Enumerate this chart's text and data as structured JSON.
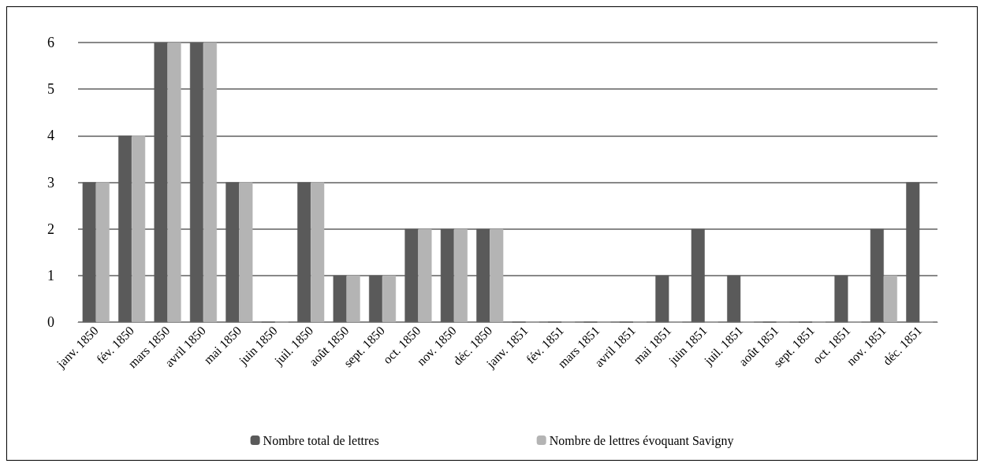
{
  "chart_data": {
    "type": "bar",
    "categories": [
      "janv. 1850",
      "fév. 1850",
      "mars 1850",
      "avril 1850",
      "mai 1850",
      "juin 1850",
      "juil. 1850",
      "août 1850",
      "sept. 1850",
      "oct. 1850",
      "nov. 1850",
      "déc. 1850",
      "janv. 1851",
      "fév. 1851",
      "mars 1851",
      "avril 1851",
      "mai 1851",
      "juin 1851",
      "juil. 1851",
      "août 1851",
      "sept. 1851",
      "oct. 1851",
      "nov. 1851",
      "déc. 1851"
    ],
    "series": [
      {
        "name": "Nombre total de lettres",
        "color": "#5a5a5a",
        "values": [
          3,
          4,
          6,
          6,
          3,
          0,
          3,
          1,
          1,
          2,
          2,
          2,
          0,
          0,
          0,
          0,
          1,
          2,
          1,
          0,
          0,
          1,
          2,
          3
        ]
      },
      {
        "name": "Nombre de lettres évoquant Savigny",
        "color": "#b4b4b4",
        "values": [
          3,
          4,
          6,
          6,
          3,
          0,
          3,
          1,
          1,
          2,
          2,
          2,
          0,
          0,
          0,
          0,
          0,
          0,
          0,
          0,
          0,
          0,
          1,
          0
        ]
      }
    ],
    "ylim": [
      0,
      6
    ],
    "yticks": [
      0,
      1,
      2,
      3,
      4,
      5,
      6
    ],
    "grid": "y",
    "legend": "bottom"
  }
}
